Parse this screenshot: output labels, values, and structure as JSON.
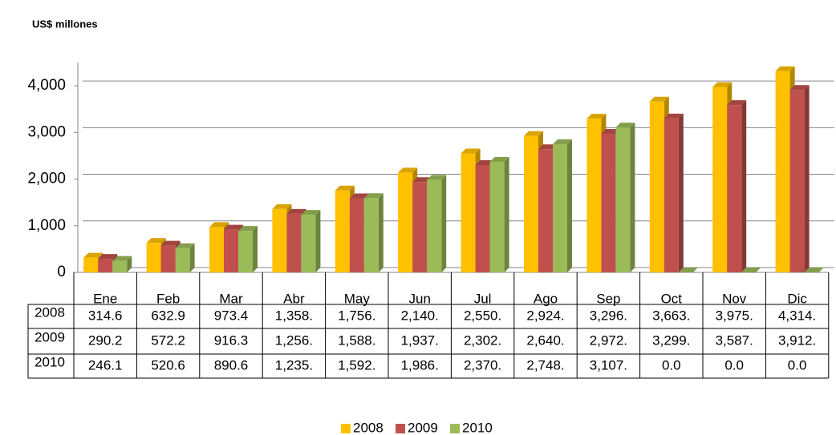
{
  "chart_data": {
    "type": "bar3d",
    "title": "US$ millones",
    "categories": [
      "Ene",
      "Feb",
      "Mar",
      "Abr",
      "May",
      "Jun",
      "Jul",
      "Ago",
      "Sep",
      "Oct",
      "Nov",
      "Dic"
    ],
    "series": [
      {
        "name": "2008",
        "color": "#ffc000",
        "values": [
          314.6,
          632.9,
          973.4,
          1358,
          1756,
          2140,
          2550,
          2924,
          3296,
          3663,
          3975,
          4314
        ],
        "value_labels": [
          "314.6",
          "632.9",
          "973.4",
          "1,358.",
          "1,756.",
          "2,140.",
          "2,550.",
          "2,924.",
          "3,296.",
          "3,663.",
          "3,975.",
          "4,314."
        ]
      },
      {
        "name": "2009",
        "color": "#c0504d",
        "values": [
          290.2,
          572.2,
          916.3,
          1256,
          1588,
          1937,
          2302,
          2640,
          2972,
          3299,
          3587,
          3912
        ],
        "value_labels": [
          "290.2",
          "572.2",
          "916.3",
          "1,256.",
          "1,588.",
          "1,937.",
          "2,302.",
          "2,640.",
          "2,972.",
          "3,299.",
          "3,587.",
          "3,912."
        ]
      },
      {
        "name": "2010",
        "color": "#9bbb59",
        "values": [
          246.1,
          520.6,
          890.6,
          1235,
          1592,
          1986,
          2370,
          2748,
          3107,
          0,
          0,
          0
        ],
        "value_labels": [
          "246.1",
          "520.6",
          "890.6",
          "1,235.",
          "1,592.",
          "1,986.",
          "2,370.",
          "2,748.",
          "3,107.",
          "0.0",
          "0.0",
          "0.0"
        ]
      }
    ],
    "ylim": [
      0,
      4500
    ],
    "yticks": [
      0,
      {
        "value": 1000,
        "label": "1,000"
      },
      {
        "value": 2000,
        "label": "2,000"
      },
      {
        "value": 3000,
        "label": "3,000"
      },
      {
        "value": 4000,
        "label": "4,000"
      }
    ],
    "grid": true,
    "legend": "bottom"
  }
}
